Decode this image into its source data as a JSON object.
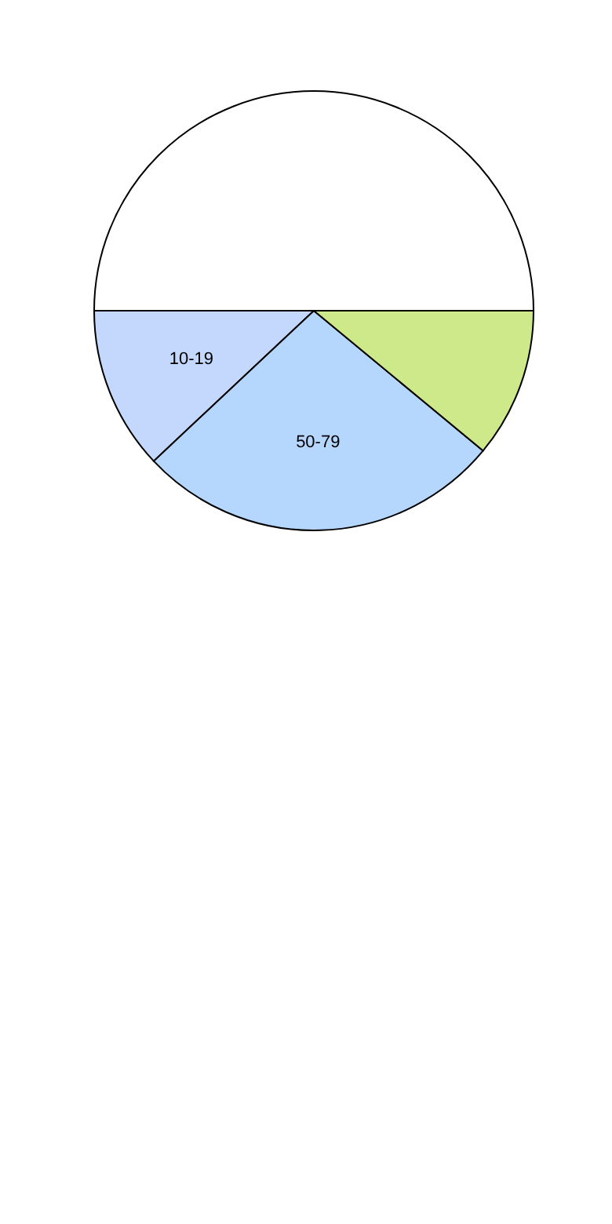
{
  "chart_data": {
    "type": "pie",
    "categories": [
      null,
      "10-19",
      "50-79",
      null
    ],
    "values": [
      50,
      12,
      27,
      11
    ],
    "colors": [
      "#ffffff",
      "#c4d8fe",
      "#b5d6fd",
      "#cde98a"
    ]
  }
}
